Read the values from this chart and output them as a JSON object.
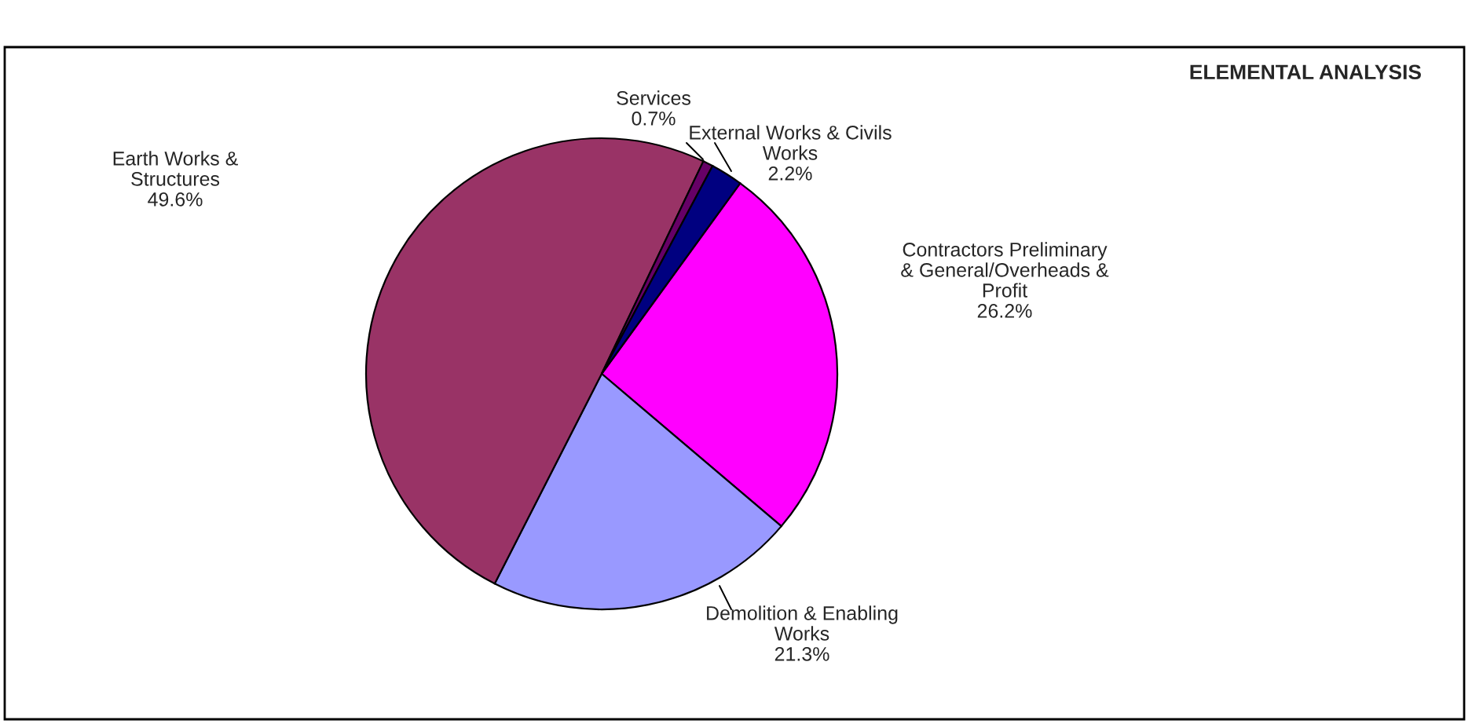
{
  "chart_data": {
    "type": "pie",
    "title": "ELEMENTAL ANALYSIS",
    "categories": [
      "Contractors Preliminary\n& General/Overheads &\nProfit",
      "Demolition & Enabling\nWorks",
      "Earth Works &\nStructures",
      "Services",
      "External Works & Civils\nWorks"
    ],
    "values": [
      26.2,
      21.3,
      49.6,
      0.7,
      2.2
    ],
    "value_labels": [
      "26.2%",
      "21.3%",
      "49.6%",
      "0.7%",
      "2.2%"
    ],
    "colors": [
      "#ff00ff",
      "#9999ff",
      "#993366",
      "#660066",
      "#000080"
    ],
    "legend": false
  }
}
